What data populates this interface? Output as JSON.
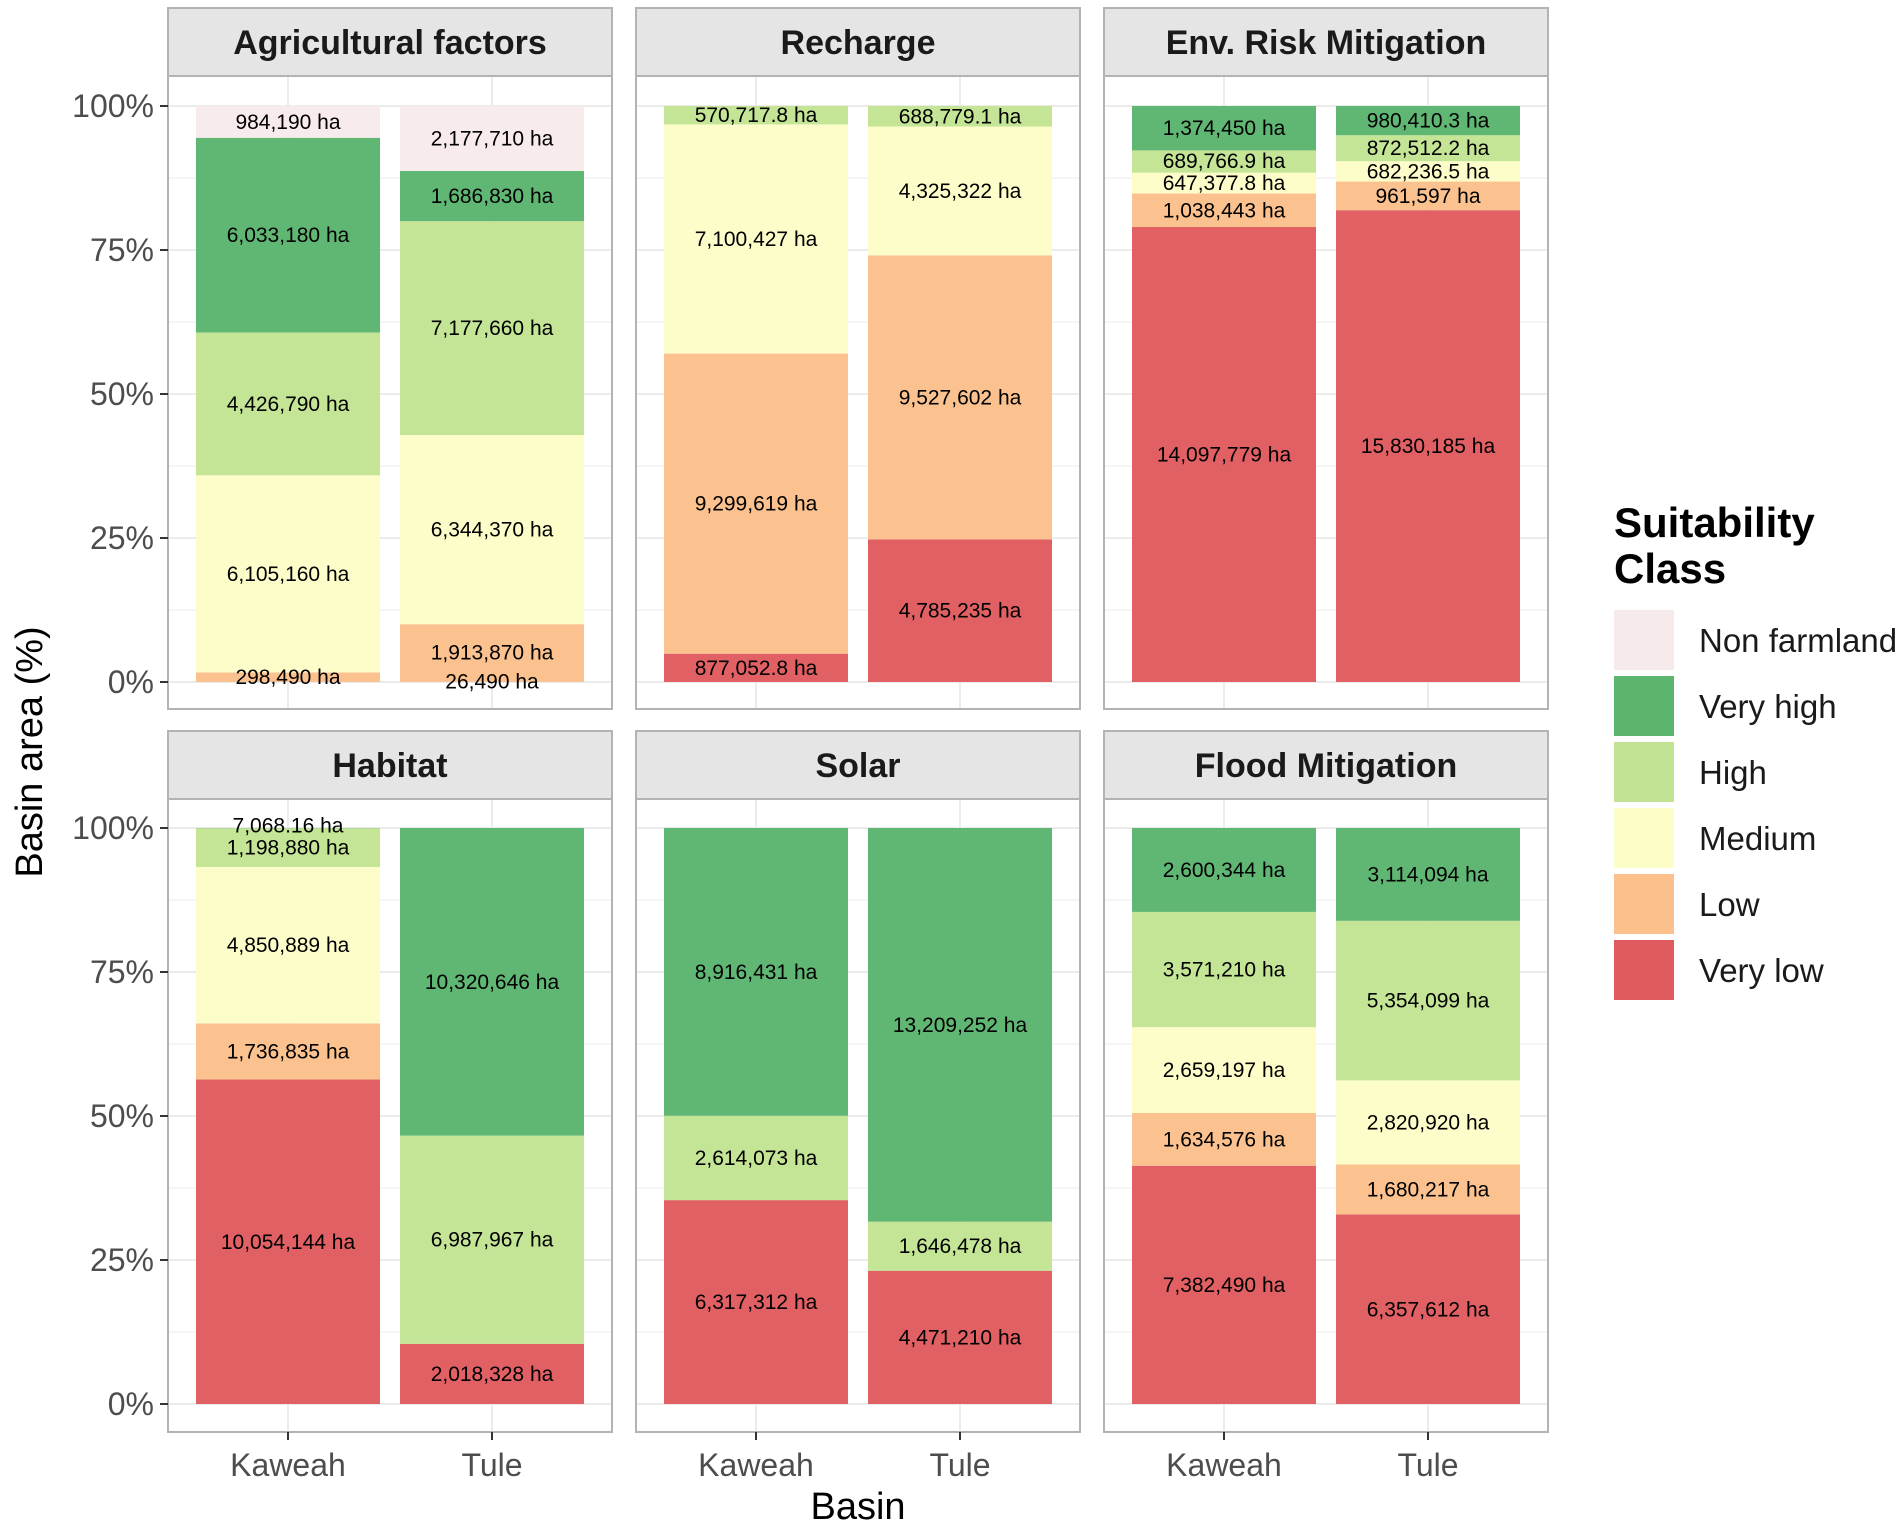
{
  "chart_data": {
    "type": "bar",
    "stacked": true,
    "normalized_percent": true,
    "xlabel": "Basin",
    "ylabel": "Basin area (%)",
    "categories": [
      "Kaweah",
      "Tule"
    ],
    "y_ticks": [
      "0%",
      "25%",
      "50%",
      "75%",
      "100%"
    ],
    "ylim": [
      0,
      100
    ],
    "legend": {
      "title_lines": [
        "Suitability",
        "Class"
      ],
      "position": "right",
      "entries": [
        {
          "key": "non_farmland",
          "label": "Non farmland",
          "color": "#f7eaea"
        },
        {
          "key": "very_high",
          "label": "Very high",
          "color": "#5bb56f"
        },
        {
          "key": "high",
          "label": "High",
          "color": "#c2e393"
        },
        {
          "key": "medium",
          "label": "Medium",
          "color": "#fdfdc8"
        },
        {
          "key": "low",
          "label": "Low",
          "color": "#fbc08b"
        },
        {
          "key": "very_low",
          "label": "Very low",
          "color": "#e05b5f"
        }
      ]
    },
    "stack_order_bottom_to_top": [
      "very_low",
      "low",
      "medium",
      "high",
      "very_high",
      "non_farmland"
    ],
    "panels": [
      {
        "title": "Agricultural factors",
        "bars": [
          {
            "category": "Kaweah",
            "segments": [
              {
                "class": "low",
                "value": 298490,
                "label": "298,490 ha"
              },
              {
                "class": "medium",
                "value": 6105160,
                "label": "6,105,160 ha"
              },
              {
                "class": "high",
                "value": 4426790,
                "label": "4,426,790 ha"
              },
              {
                "class": "very_high",
                "value": 6033180,
                "label": "6,033,180 ha"
              },
              {
                "class": "non_farmland",
                "value": 984190,
                "label": "984,190 ha"
              }
            ]
          },
          {
            "category": "Tule",
            "segments": [
              {
                "class": "low",
                "value": 26490,
                "label": "26,490 ha"
              },
              {
                "class": "low",
                "value": 1913870,
                "label": "1,913,870 ha"
              },
              {
                "class": "medium",
                "value": 6344370,
                "label": "6,344,370 ha"
              },
              {
                "class": "high",
                "value": 7177660,
                "label": "7,177,660 ha"
              },
              {
                "class": "very_high",
                "value": 1686830,
                "label": "1,686,830 ha"
              },
              {
                "class": "non_farmland",
                "value": 2177710,
                "label": "2,177,710 ha"
              }
            ]
          }
        ]
      },
      {
        "title": "Recharge",
        "bars": [
          {
            "category": "Kaweah",
            "segments": [
              {
                "class": "very_low",
                "value": 877052.8,
                "label": "877,052.8 ha"
              },
              {
                "class": "low",
                "value": 9299619,
                "label": "9,299,619 ha"
              },
              {
                "class": "medium",
                "value": 7100427,
                "label": "7,100,427 ha"
              },
              {
                "class": "high",
                "value": 570717.8,
                "label": "570,717.8 ha"
              }
            ]
          },
          {
            "category": "Tule",
            "segments": [
              {
                "class": "very_low",
                "value": 4785235,
                "label": "4,785,235 ha"
              },
              {
                "class": "low",
                "value": 9527602,
                "label": "9,527,602 ha"
              },
              {
                "class": "medium",
                "value": 4325322,
                "label": "4,325,322 ha"
              },
              {
                "class": "high",
                "value": 688779.1,
                "label": "688,779.1 ha"
              }
            ]
          }
        ]
      },
      {
        "title": "Env. Risk Mitigation",
        "bars": [
          {
            "category": "Kaweah",
            "segments": [
              {
                "class": "very_low",
                "value": 14097779,
                "label": "14,097,779 ha"
              },
              {
                "class": "low",
                "value": 1038443,
                "label": "1,038,443 ha"
              },
              {
                "class": "medium",
                "value": 647377.8,
                "label": "647,377.8 ha"
              },
              {
                "class": "high",
                "value": 689766.9,
                "label": "689,766.9 ha"
              },
              {
                "class": "very_high",
                "value": 1374450,
                "label": "1,374,450 ha"
              }
            ]
          },
          {
            "category": "Tule",
            "segments": [
              {
                "class": "very_low",
                "value": 15830185,
                "label": "15,830,185 ha"
              },
              {
                "class": "low",
                "value": 961597,
                "label": "961,597 ha"
              },
              {
                "class": "medium",
                "value": 682236.5,
                "label": "682,236.5 ha"
              },
              {
                "class": "high",
                "value": 872512.2,
                "label": "872,512.2 ha"
              },
              {
                "class": "very_high",
                "value": 980410.3,
                "label": "980,410.3 ha"
              }
            ]
          }
        ]
      },
      {
        "title": "Habitat",
        "bars": [
          {
            "category": "Kaweah",
            "segments": [
              {
                "class": "very_low",
                "value": 10054144,
                "label": "10,054,144 ha"
              },
              {
                "class": "low",
                "value": 1736835,
                "label": "1,736,835 ha"
              },
              {
                "class": "medium",
                "value": 4850889,
                "label": "4,850,889 ha"
              },
              {
                "class": "high",
                "value": 1198880,
                "label": "1,198,880 ha"
              },
              {
                "class": "very_high",
                "value": 7068.16,
                "label": "7,068.16 ha"
              }
            ]
          },
          {
            "category": "Tule",
            "segments": [
              {
                "class": "very_low",
                "value": 2018328,
                "label": "2,018,328 ha"
              },
              {
                "class": "high",
                "value": 6987967,
                "label": "6,987,967 ha"
              },
              {
                "class": "very_high",
                "value": 10320646,
                "label": "10,320,646 ha"
              }
            ]
          }
        ]
      },
      {
        "title": "Solar",
        "bars": [
          {
            "category": "Kaweah",
            "segments": [
              {
                "class": "very_low",
                "value": 6317312,
                "label": "6,317,312 ha"
              },
              {
                "class": "high",
                "value": 2614073,
                "label": "2,614,073 ha"
              },
              {
                "class": "very_high",
                "value": 8916431,
                "label": "8,916,431 ha"
              }
            ]
          },
          {
            "category": "Tule",
            "segments": [
              {
                "class": "very_low",
                "value": 4471210,
                "label": "4,471,210 ha"
              },
              {
                "class": "high",
                "value": 1646478,
                "label": "1,646,478 ha"
              },
              {
                "class": "very_high",
                "value": 13209252,
                "label": "13,209,252 ha"
              }
            ]
          }
        ]
      },
      {
        "title": "Flood Mitigation",
        "bars": [
          {
            "category": "Kaweah",
            "segments": [
              {
                "class": "very_low",
                "value": 7382490,
                "label": "7,382,490 ha"
              },
              {
                "class": "low",
                "value": 1634576,
                "label": "1,634,576 ha"
              },
              {
                "class": "medium",
                "value": 2659197,
                "label": "2,659,197 ha"
              },
              {
                "class": "high",
                "value": 3571210,
                "label": "3,571,210 ha"
              },
              {
                "class": "very_high",
                "value": 2600344,
                "label": "2,600,344 ha"
              }
            ]
          },
          {
            "category": "Tule",
            "segments": [
              {
                "class": "very_low",
                "value": 6357612,
                "label": "6,357,612 ha"
              },
              {
                "class": "low",
                "value": 1680217,
                "label": "1,680,217 ha"
              },
              {
                "class": "medium",
                "value": 2820920,
                "label": "2,820,920 ha"
              },
              {
                "class": "high",
                "value": 5354099,
                "label": "5,354,099 ha"
              },
              {
                "class": "very_high",
                "value": 3114094,
                "label": "3,114,094 ha"
              }
            ]
          }
        ]
      }
    ]
  }
}
